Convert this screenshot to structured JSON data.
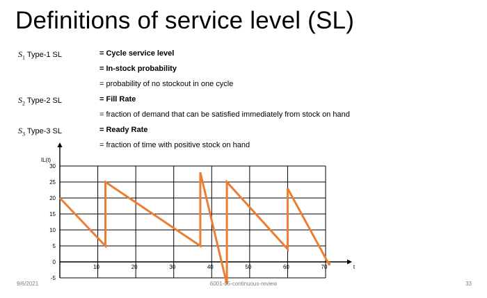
{
  "slide": {
    "title": "Definitions of service level (SL)",
    "footer": {
      "date": "9/6/2021",
      "center": "6001-05-continuous-review",
      "page": "33"
    }
  },
  "definitions": [
    {
      "symbol": "S",
      "subscript": "1",
      "label": "Type-1 SL",
      "lines": [
        {
          "text": "= Cycle service level",
          "bold": true
        },
        {
          "text": "= In-stock probability",
          "bold": true
        },
        {
          "text": "= probability of no stockout in one cycle",
          "bold": false
        }
      ]
    },
    {
      "symbol": "S",
      "subscript": "2",
      "label": "Type-2 SL",
      "lines": [
        {
          "text": "= Fill Rate",
          "bold": true
        },
        {
          "text": "= fraction of demand that can be satisfied immediately from stock on hand",
          "bold": false
        }
      ]
    },
    {
      "symbol": "S",
      "subscript": "3",
      "label": "Type-3 SL",
      "lines": [
        {
          "text": "= Ready Rate",
          "bold": true
        },
        {
          "text": "= fraction of time with positive stock on hand",
          "bold": false
        }
      ]
    }
  ],
  "chart_data": {
    "type": "line",
    "ylabel": "IL(t)",
    "xlabel": "t",
    "xlim": [
      0,
      72
    ],
    "ylim": [
      -5,
      30
    ],
    "x_ticks": [
      10,
      20,
      30,
      40,
      50,
      60,
      70
    ],
    "y_ticks": [
      -5,
      0,
      5,
      10,
      15,
      20,
      25,
      30
    ],
    "grid": true,
    "line_color": "#ed7d31",
    "series": [
      {
        "x": [
          0,
          12,
          12,
          37,
          37,
          44,
          44,
          60,
          60,
          71,
          71
        ],
        "y": [
          20,
          5,
          25,
          5,
          28,
          -7,
          25,
          4,
          23,
          -1,
          0
        ]
      }
    ]
  }
}
